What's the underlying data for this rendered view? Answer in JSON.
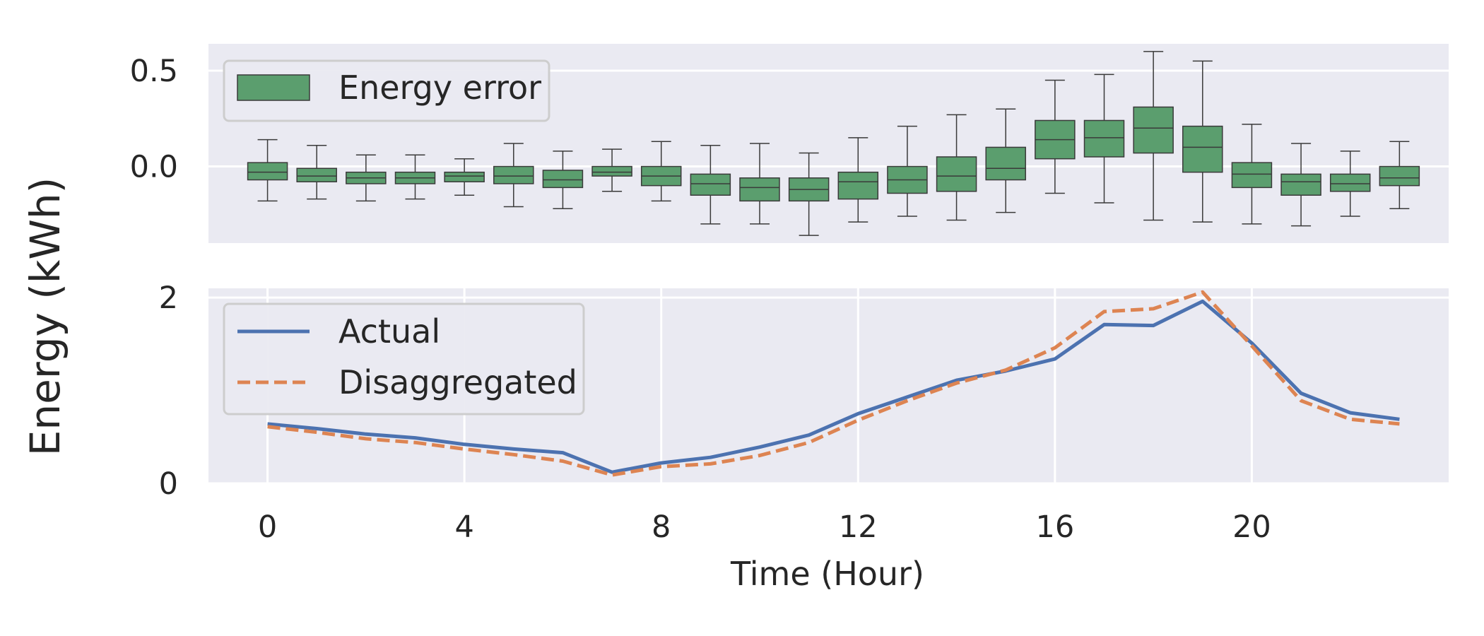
{
  "figure": {
    "ylabel": "Energy (kWh)",
    "xlabel": "Time (Hour)",
    "colors": {
      "panel_bg": "#eaeaf2",
      "grid": "#ffffff",
      "box": "#5b9e6e",
      "box_edge": "#3a3a3a",
      "actual": "#4c72b0",
      "disaggregated": "#dd8452"
    }
  },
  "chart_data": [
    {
      "type": "box",
      "panel": "top",
      "legend": {
        "label": "Energy error",
        "location": "upper-left"
      },
      "grid": true,
      "ylim": [
        -0.4,
        0.64
      ],
      "yticks": [
        "0.5",
        "0.0"
      ],
      "ytick_values": [
        0.5,
        0.0
      ],
      "x": [
        0,
        1,
        2,
        3,
        4,
        5,
        6,
        7,
        8,
        9,
        10,
        11,
        12,
        13,
        14,
        15,
        16,
        17,
        18,
        19,
        20,
        21,
        22,
        23
      ],
      "boxes": [
        {
          "whislo": -0.18,
          "q1": -0.07,
          "med": -0.03,
          "q3": 0.02,
          "whishi": 0.14
        },
        {
          "whislo": -0.17,
          "q1": -0.08,
          "med": -0.05,
          "q3": -0.01,
          "whishi": 0.11
        },
        {
          "whislo": -0.18,
          "q1": -0.09,
          "med": -0.06,
          "q3": -0.03,
          "whishi": 0.06
        },
        {
          "whislo": -0.17,
          "q1": -0.09,
          "med": -0.06,
          "q3": -0.03,
          "whishi": 0.06
        },
        {
          "whislo": -0.15,
          "q1": -0.08,
          "med": -0.05,
          "q3": -0.03,
          "whishi": 0.04
        },
        {
          "whislo": -0.21,
          "q1": -0.09,
          "med": -0.05,
          "q3": 0.0,
          "whishi": 0.12
        },
        {
          "whislo": -0.22,
          "q1": -0.11,
          "med": -0.07,
          "q3": -0.02,
          "whishi": 0.08
        },
        {
          "whislo": -0.13,
          "q1": -0.05,
          "med": -0.03,
          "q3": 0.0,
          "whishi": 0.09
        },
        {
          "whislo": -0.18,
          "q1": -0.1,
          "med": -0.05,
          "q3": 0.0,
          "whishi": 0.13
        },
        {
          "whislo": -0.3,
          "q1": -0.15,
          "med": -0.09,
          "q3": -0.04,
          "whishi": 0.11
        },
        {
          "whislo": -0.3,
          "q1": -0.18,
          "med": -0.11,
          "q3": -0.06,
          "whishi": 0.12
        },
        {
          "whislo": -0.36,
          "q1": -0.18,
          "med": -0.12,
          "q3": -0.06,
          "whishi": 0.07
        },
        {
          "whislo": -0.29,
          "q1": -0.17,
          "med": -0.08,
          "q3": -0.03,
          "whishi": 0.15
        },
        {
          "whislo": -0.26,
          "q1": -0.14,
          "med": -0.07,
          "q3": 0.0,
          "whishi": 0.21
        },
        {
          "whislo": -0.28,
          "q1": -0.13,
          "med": -0.05,
          "q3": 0.05,
          "whishi": 0.27
        },
        {
          "whislo": -0.24,
          "q1": -0.07,
          "med": -0.01,
          "q3": 0.1,
          "whishi": 0.3
        },
        {
          "whislo": -0.14,
          "q1": 0.04,
          "med": 0.14,
          "q3": 0.24,
          "whishi": 0.45
        },
        {
          "whislo": -0.19,
          "q1": 0.05,
          "med": 0.15,
          "q3": 0.24,
          "whishi": 0.48
        },
        {
          "whislo": -0.28,
          "q1": 0.07,
          "med": 0.2,
          "q3": 0.31,
          "whishi": 0.6
        },
        {
          "whislo": -0.29,
          "q1": -0.03,
          "med": 0.1,
          "q3": 0.21,
          "whishi": 0.55
        },
        {
          "whislo": -0.3,
          "q1": -0.11,
          "med": -0.04,
          "q3": 0.02,
          "whishi": 0.22
        },
        {
          "whislo": -0.31,
          "q1": -0.15,
          "med": -0.08,
          "q3": -0.04,
          "whishi": 0.12
        },
        {
          "whislo": -0.26,
          "q1": -0.13,
          "med": -0.09,
          "q3": -0.04,
          "whishi": 0.08
        },
        {
          "whislo": -0.22,
          "q1": -0.1,
          "med": -0.06,
          "q3": 0.0,
          "whishi": 0.13
        }
      ]
    },
    {
      "type": "line",
      "panel": "bottom",
      "legend": {
        "location": "upper-left"
      },
      "grid": true,
      "xlim": [
        -1.2,
        24.0
      ],
      "ylim": [
        0,
        2.1
      ],
      "xticks": [
        "0",
        "4",
        "8",
        "12",
        "16",
        "20"
      ],
      "xtick_values": [
        0,
        4,
        8,
        12,
        16,
        20
      ],
      "yticks": [
        "2",
        "0"
      ],
      "ytick_values": [
        2,
        0
      ],
      "x": [
        0,
        1,
        2,
        3,
        4,
        5,
        6,
        7,
        8,
        9,
        10,
        11,
        12,
        13,
        14,
        15,
        16,
        17,
        18,
        19,
        20,
        21,
        22,
        23
      ],
      "series": [
        {
          "name": "Actual",
          "style": "solid",
          "values": [
            0.64,
            0.59,
            0.53,
            0.49,
            0.42,
            0.37,
            0.33,
            0.12,
            0.22,
            0.28,
            0.39,
            0.52,
            0.75,
            0.93,
            1.11,
            1.21,
            1.34,
            1.71,
            1.7,
            1.96,
            1.51,
            0.97,
            0.76,
            0.69
          ]
        },
        {
          "name": "Disaggregated",
          "style": "dashed",
          "values": [
            0.61,
            0.55,
            0.48,
            0.44,
            0.37,
            0.31,
            0.24,
            0.09,
            0.18,
            0.21,
            0.3,
            0.44,
            0.68,
            0.89,
            1.08,
            1.22,
            1.46,
            1.85,
            1.88,
            2.06,
            1.48,
            0.89,
            0.69,
            0.64
          ]
        }
      ]
    }
  ]
}
